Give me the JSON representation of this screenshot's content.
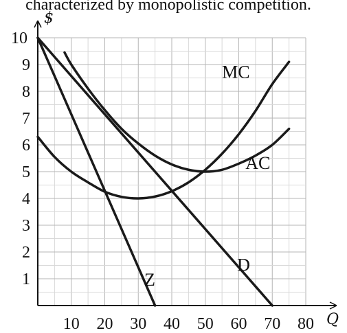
{
  "header_text": "characterized by monopolistic competition.",
  "chart_data": {
    "type": "line",
    "title": "",
    "xlabel": "Q",
    "ylabel": "$",
    "xlim": [
      0,
      80
    ],
    "ylim": [
      0,
      10
    ],
    "xticks": [
      10,
      20,
      30,
      40,
      50,
      60,
      70,
      80
    ],
    "yticks": [
      1,
      2,
      3,
      4,
      5,
      6,
      7,
      8,
      9,
      10
    ],
    "grid": true,
    "series": [
      {
        "name": "D",
        "x": [
          0,
          70
        ],
        "y": [
          10,
          0
        ]
      },
      {
        "name": "Z",
        "x": [
          0,
          35
        ],
        "y": [
          10,
          0
        ]
      },
      {
        "name": "MC",
        "x": [
          0,
          5,
          10,
          15,
          20,
          25,
          30,
          35,
          40,
          45,
          50,
          55,
          60,
          65,
          70,
          75
        ],
        "y": [
          6.3,
          5.55,
          5.0,
          4.6,
          4.25,
          4.06,
          4.0,
          4.07,
          4.27,
          4.6,
          5.07,
          5.67,
          6.4,
          7.27,
          8.27,
          9.1
        ]
      },
      {
        "name": "AC",
        "x": [
          8,
          10,
          15,
          20,
          25,
          30,
          35,
          40,
          45,
          50,
          55,
          60,
          65,
          70,
          75
        ],
        "y": [
          9.45,
          9.0,
          8.1,
          7.3,
          6.6,
          6.05,
          5.6,
          5.27,
          5.07,
          5.0,
          5.07,
          5.3,
          5.6,
          6.0,
          6.6
        ]
      }
    ],
    "labels": [
      {
        "text": "MC",
        "x": 55,
        "y": 8.5
      },
      {
        "text": "AC",
        "x": 62,
        "y": 5.1
      },
      {
        "text": "D",
        "x": 59.5,
        "y": 1.3
      },
      {
        "text": "Z",
        "x": 31.8,
        "y": 0.75
      }
    ]
  }
}
